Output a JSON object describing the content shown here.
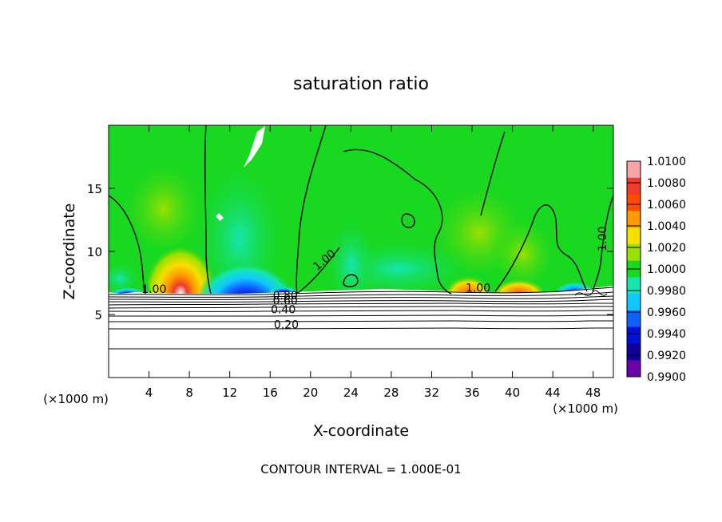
{
  "chart_data": {
    "type": "heatmap",
    "title": "saturation ratio",
    "xlabel": "X-coordinate",
    "ylabel": "Z-coordinate",
    "x_unit": "(×1000 m)",
    "x_unit_right": "(×1000 m)",
    "xlim": [
      0,
      50
    ],
    "ylim": [
      0,
      20
    ],
    "x_ticks": [
      4,
      8,
      12,
      16,
      20,
      24,
      28,
      32,
      36,
      40,
      44,
      48
    ],
    "y_ticks": [
      5,
      10,
      15
    ],
    "footer": "CONTOUR INTERVAL = 1.000E-01",
    "colorbar": {
      "min": 0.99,
      "max": 1.01,
      "labels": [
        "1.0100",
        "1.0080",
        "1.0060",
        "1.0040",
        "1.0020",
        "1.0000",
        "0.9980",
        "0.9960",
        "0.9940",
        "0.9920",
        "0.9900"
      ],
      "colors": [
        "#f7a6a6",
        "#f03a2b",
        "#ff4c00",
        "#ff9a00",
        "#f5e000",
        "#9be000",
        "#18d820",
        "#15e6b0",
        "#10c8ff",
        "#1060ff",
        "#0010d8",
        "#10009a",
        "#6a00a8"
      ]
    },
    "background_fill": "#18d820",
    "contour_labels": [
      {
        "text": "1.00",
        "x": 4.5,
        "z": 6.7
      },
      {
        "text": "1.00",
        "x": 21.6,
        "z": 9.1
      },
      {
        "text": "1.00",
        "x": 36.6,
        "z": 6.8
      },
      {
        "text": "1.00",
        "x": 49.3,
        "z": 11.0
      },
      {
        "text": "0.80",
        "x": 17.5,
        "z": 6.2
      },
      {
        "text": "0.60",
        "x": 17.5,
        "z": 5.8
      },
      {
        "text": "0.40",
        "x": 17.3,
        "z": 5.1
      },
      {
        "text": "0.20",
        "x": 17.6,
        "z": 3.9
      }
    ],
    "hotspots": [
      {
        "x": 7.0,
        "z": 9.0,
        "value": 1.0065
      },
      {
        "x": 36.2,
        "z": 7.6,
        "value": 1.006
      },
      {
        "x": 40.8,
        "z": 7.4,
        "value": 1.006
      },
      {
        "x": 13.7,
        "z": 8.0,
        "value": 0.992
      },
      {
        "x": 46.2,
        "z": 7.3,
        "value": 0.993
      }
    ]
  }
}
